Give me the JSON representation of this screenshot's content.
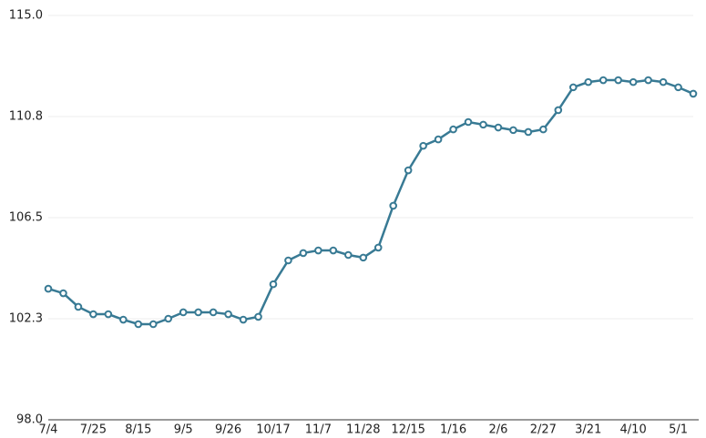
{
  "chart_data": {
    "type": "line",
    "categories": [
      "7/4",
      null,
      null,
      "7/25",
      null,
      null,
      "8/15",
      null,
      null,
      "9/5",
      null,
      null,
      "9/26",
      null,
      null,
      "10/17",
      null,
      null,
      "11/7",
      null,
      null,
      "11/28",
      null,
      null,
      "12/15",
      null,
      null,
      "1/16",
      null,
      null,
      "2/6",
      null,
      null,
      "2/27",
      null,
      null,
      "3/21",
      null,
      null,
      "4/10",
      null,
      null,
      "5/1",
      null
    ],
    "values": [
      103.51,
      103.32,
      102.75,
      102.44,
      102.44,
      102.21,
      102.02,
      102.02,
      102.25,
      102.52,
      102.52,
      102.52,
      102.44,
      102.21,
      102.33,
      103.7,
      104.7,
      105.01,
      105.12,
      105.12,
      104.93,
      104.82,
      105.24,
      107.0,
      108.49,
      109.52,
      109.79,
      110.21,
      110.52,
      110.41,
      110.29,
      110.18,
      110.1,
      110.21,
      111.02,
      111.98,
      112.2,
      112.28,
      112.28,
      112.2,
      112.28,
      112.2,
      111.98,
      111.71
    ],
    "color": "#387a94",
    "ylim": [
      98,
      115
    ],
    "yticks": [
      {
        "value": 98,
        "label": "98.0"
      },
      {
        "value": 102.25,
        "label": "102.3"
      },
      {
        "value": 106.5,
        "label": "106.5"
      },
      {
        "value": 110.75,
        "label": "110.8"
      },
      {
        "value": 115,
        "label": "115.0"
      }
    ],
    "grid": true
  }
}
